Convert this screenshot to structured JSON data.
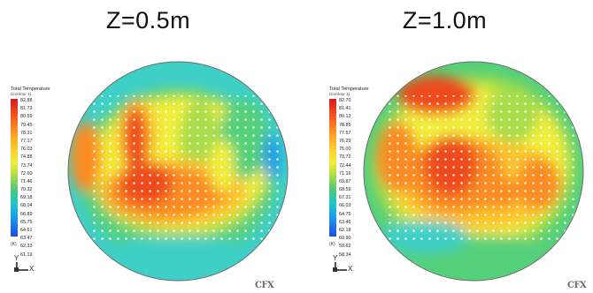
{
  "panels": [
    {
      "title": "Z=0.5m",
      "legend": {
        "title": "Total Temperature",
        "subtitle": "(Contour 1)",
        "ticks": [
          "82.88",
          "81.73",
          "80.59",
          "79.45",
          "78.31",
          "77.17",
          "76.03",
          "74.88",
          "73.74",
          "72.60",
          "71.46",
          "70.32",
          "69.18",
          "68.04",
          "66.89",
          "65.75",
          "64.61",
          "63.47",
          "62.33",
          "61.19"
        ],
        "unit": "(K)"
      },
      "triad": {
        "y": "Y",
        "x": "X"
      },
      "brand": "CFX"
    },
    {
      "title": "Z=1.0m",
      "legend": {
        "title": "Total Temperature",
        "subtitle": "(Contour 1)",
        "ticks": [
          "82.70",
          "81.41",
          "80.13",
          "78.85",
          "77.57",
          "76.29",
          "75.00",
          "73.72",
          "72.44",
          "71.16",
          "69.87",
          "68.59",
          "67.31",
          "66.03",
          "64.75",
          "63.46",
          "62.18",
          "60.90",
          "59.62",
          "58.34"
        ],
        "unit": "(K)"
      },
      "triad": {
        "y": "Y",
        "x": "X"
      },
      "brand": "CFX"
    }
  ],
  "colors": {
    "hot": "#d7191c",
    "warm": "#fb8b24",
    "mid": "#f2ee3a",
    "cool": "#50c878",
    "cold": "#1e4be0"
  }
}
